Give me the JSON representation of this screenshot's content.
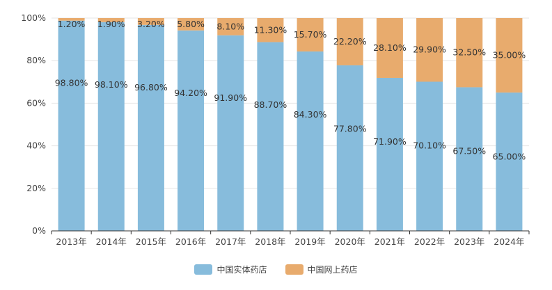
{
  "chart_data": {
    "type": "bar",
    "stacked": true,
    "categories": [
      "2013年",
      "2014年",
      "2015年",
      "2016年",
      "2017年",
      "2018年",
      "2019年",
      "2020年",
      "2021年",
      "2022年",
      "2023年",
      "2024年"
    ],
    "series": [
      {
        "name": "中国实体药店",
        "color": "#87bcdc",
        "values": [
          98.8,
          98.1,
          96.8,
          94.2,
          91.9,
          88.7,
          84.3,
          77.8,
          71.9,
          70.1,
          67.5,
          65.0
        ],
        "labels": [
          "98.80%",
          "98.10%",
          "96.80%",
          "94.20%",
          "91.90%",
          "88.70%",
          "84.30%",
          "77.80%",
          "71.90%",
          "70.10%",
          "67.50%",
          "65.00%"
        ]
      },
      {
        "name": "中国网上药店",
        "color": "#e8ab6d",
        "values": [
          1.2,
          1.9,
          3.2,
          5.8,
          8.1,
          11.3,
          15.7,
          22.2,
          28.1,
          29.9,
          32.5,
          35.0
        ],
        "labels": [
          "1.20%",
          "1.90%",
          "3.20%",
          "5.80%",
          "8.10%",
          "11.30%",
          "15.70%",
          "22.20%",
          "28.10%",
          "29.90%",
          "32.50%",
          "35.00%"
        ]
      }
    ],
    "yticks": [
      "0%",
      "20%",
      "40%",
      "60%",
      "80%",
      "100%"
    ],
    "ylim": [
      0,
      100
    ],
    "grid": true,
    "legend_position": "bottom-center"
  }
}
